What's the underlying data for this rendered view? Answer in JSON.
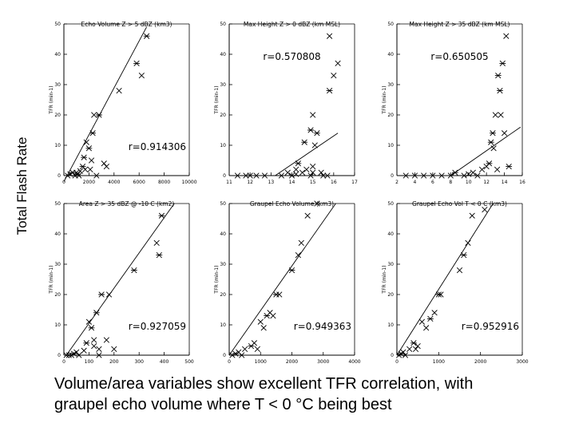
{
  "figure": {
    "ylabel": "Total Flash Rate",
    "caption_lines": [
      "Volume/area variables show excellent TFR correlation, with",
      "graupel echo volume where T < 0 °C being best"
    ]
  },
  "chart_data": [
    {
      "type": "scatter",
      "title": "Echo Volume Z > 5 dBZ (km3)",
      "ylabel": "TFR (min-1)",
      "annotation": "r=0.914306",
      "xlim": [
        0,
        10000
      ],
      "ylim": [
        0,
        50
      ],
      "xticks": [
        0,
        2000,
        4000,
        6000,
        8000,
        10000
      ],
      "yticks": [
        0,
        10,
        20,
        30,
        40,
        50
      ],
      "fit": [
        [
          0,
          -2
        ],
        [
          6600,
          49
        ]
      ],
      "points": [
        [
          300,
          0
        ],
        [
          500,
          0.5
        ],
        [
          700,
          1
        ],
        [
          900,
          0
        ],
        [
          1100,
          0.5
        ],
        [
          1300,
          1.5
        ],
        [
          1500,
          3
        ],
        [
          1700,
          2
        ],
        [
          1800,
          11
        ],
        [
          2000,
          9
        ],
        [
          2200,
          5
        ],
        [
          2300,
          14
        ],
        [
          2400,
          20
        ],
        [
          2800,
          20
        ],
        [
          3200,
          4
        ],
        [
          3400,
          3
        ],
        [
          4400,
          28
        ],
        [
          5800,
          37
        ],
        [
          6200,
          33
        ],
        [
          6600,
          46
        ],
        [
          1000,
          1
        ],
        [
          1600,
          6
        ],
        [
          2100,
          2
        ],
        [
          1200,
          0
        ],
        [
          2600,
          0
        ]
      ]
    },
    {
      "type": "scatter",
      "title": "Max Height Z > 0 dBZ (km MSL)",
      "ylabel": "TFR (min-1)",
      "annotation": "r=0.570808",
      "xlim": [
        11,
        17
      ],
      "ylim": [
        0,
        50
      ],
      "xticks": [
        11,
        12,
        13,
        14,
        15,
        16,
        17
      ],
      "yticks": [
        0,
        10,
        20,
        30,
        40,
        50
      ],
      "fit": [
        [
          13.2,
          0
        ],
        [
          16.2,
          14
        ]
      ],
      "points": [
        [
          11.4,
          0
        ],
        [
          11.8,
          0
        ],
        [
          12.0,
          0
        ],
        [
          12.3,
          0
        ],
        [
          12.7,
          0
        ],
        [
          13.5,
          0
        ],
        [
          13.8,
          1
        ],
        [
          14.0,
          0
        ],
        [
          14.2,
          0.5
        ],
        [
          14.3,
          4
        ],
        [
          14.5,
          1
        ],
        [
          14.6,
          11
        ],
        [
          14.7,
          2
        ],
        [
          14.9,
          0
        ],
        [
          14.9,
          15
        ],
        [
          15.0,
          3
        ],
        [
          15.0,
          20
        ],
        [
          15.1,
          10
        ],
        [
          15.2,
          14
        ],
        [
          15.4,
          1
        ],
        [
          15.5,
          0
        ],
        [
          15.7,
          0
        ],
        [
          15.8,
          28
        ],
        [
          16.2,
          37
        ],
        [
          16.0,
          33
        ],
        [
          15.8,
          46
        ],
        [
          14.2,
          2
        ],
        [
          15.0,
          1
        ]
      ]
    },
    {
      "type": "scatter",
      "title": "Max Height Z > 35 dBZ (km MSL)",
      "ylabel": "TFR (min-1)",
      "annotation": "r=0.650505",
      "xlim": [
        2,
        16
      ],
      "ylim": [
        0,
        50
      ],
      "xticks": [
        2,
        4,
        6,
        8,
        10,
        12,
        14,
        16
      ],
      "yticks": [
        0,
        10,
        20,
        30,
        40,
        50
      ],
      "fit": [
        [
          3,
          0
        ],
        [
          8,
          0
        ],
        [
          15.8,
          16
        ]
      ],
      "points": [
        [
          3,
          0
        ],
        [
          4,
          0
        ],
        [
          5,
          0
        ],
        [
          6,
          0
        ],
        [
          7,
          0
        ],
        [
          8,
          0
        ],
        [
          8.5,
          1
        ],
        [
          9.5,
          0
        ],
        [
          10,
          0.5
        ],
        [
          10.5,
          1
        ],
        [
          11,
          0
        ],
        [
          11.5,
          2
        ],
        [
          12,
          3
        ],
        [
          12.3,
          4
        ],
        [
          12.5,
          11
        ],
        [
          12.8,
          9
        ],
        [
          12.7,
          14
        ],
        [
          13,
          20
        ],
        [
          13.2,
          2
        ],
        [
          13.5,
          28
        ],
        [
          13.3,
          33
        ],
        [
          13.6,
          20
        ],
        [
          13.8,
          37
        ],
        [
          14,
          14
        ],
        [
          14.2,
          46
        ],
        [
          14.5,
          3
        ]
      ]
    },
    {
      "type": "scatter",
      "title": "Area Z > 35 dBZ @ -10 C (km2)",
      "ylabel": "TFR (min-1)",
      "annotation": "r=0.927059",
      "xlim": [
        0,
        500
      ],
      "ylim": [
        0,
        50
      ],
      "xticks": [
        0,
        100,
        200,
        300,
        400,
        500
      ],
      "yticks": [
        0,
        10,
        20,
        30,
        40,
        50
      ],
      "fit": [
        [
          10,
          0
        ],
        [
          440,
          50
        ]
      ],
      "points": [
        [
          10,
          0
        ],
        [
          20,
          0
        ],
        [
          30,
          0
        ],
        [
          40,
          0.5
        ],
        [
          50,
          1
        ],
        [
          60,
          0
        ],
        [
          80,
          1.5
        ],
        [
          90,
          4
        ],
        [
          100,
          11
        ],
        [
          110,
          9
        ],
        [
          120,
          3
        ],
        [
          130,
          14
        ],
        [
          140,
          2
        ],
        [
          150,
          20
        ],
        [
          170,
          5
        ],
        [
          180,
          20
        ],
        [
          200,
          2
        ],
        [
          280,
          28
        ],
        [
          370,
          37
        ],
        [
          380,
          33
        ],
        [
          390,
          46
        ],
        [
          120,
          5
        ],
        [
          140,
          0
        ]
      ]
    },
    {
      "type": "scatter",
      "title": "Graupel Echo Volume (km3)",
      "ylabel": "TFR (min-1)",
      "annotation": "r=0.949363",
      "xlim": [
        0,
        4000
      ],
      "ylim": [
        0,
        50
      ],
      "xticks": [
        0,
        1000,
        2000,
        3000,
        4000
      ],
      "yticks": [
        0,
        10,
        20,
        30,
        40,
        50
      ],
      "fit": [
        [
          0,
          0
        ],
        [
          3400,
          50
        ]
      ],
      "points": [
        [
          100,
          0
        ],
        [
          200,
          0.5
        ],
        [
          300,
          1
        ],
        [
          400,
          0
        ],
        [
          500,
          2
        ],
        [
          700,
          3
        ],
        [
          800,
          4
        ],
        [
          900,
          2
        ],
        [
          1000,
          11
        ],
        [
          1100,
          9
        ],
        [
          1200,
          13
        ],
        [
          1300,
          14
        ],
        [
          1400,
          13
        ],
        [
          1500,
          20
        ],
        [
          1600,
          20
        ],
        [
          2000,
          28
        ],
        [
          2200,
          33
        ],
        [
          2300,
          37
        ],
        [
          2500,
          46
        ],
        [
          2800,
          50
        ]
      ]
    },
    {
      "type": "scatter",
      "title": "Graupel Echo Vol T < 0 C (km3)",
      "ylabel": "TFR (min-1)",
      "annotation": "r=0.952916",
      "xlim": [
        0,
        3000
      ],
      "ylim": [
        0,
        50
      ],
      "xticks": [
        0,
        1000,
        2000,
        3000
      ],
      "yticks": [
        0,
        10,
        20,
        30,
        40,
        50
      ],
      "fit": [
        [
          0,
          0
        ],
        [
          2300,
          50
        ]
      ],
      "points": [
        [
          50,
          0
        ],
        [
          100,
          0.5
        ],
        [
          150,
          1
        ],
        [
          200,
          0
        ],
        [
          300,
          2
        ],
        [
          400,
          4
        ],
        [
          450,
          2
        ],
        [
          500,
          3
        ],
        [
          600,
          11
        ],
        [
          700,
          9
        ],
        [
          800,
          12
        ],
        [
          900,
          14
        ],
        [
          1000,
          20
        ],
        [
          1050,
          20
        ],
        [
          1500,
          28
        ],
        [
          1600,
          33
        ],
        [
          1700,
          37
        ],
        [
          1800,
          46
        ],
        [
          2100,
          48
        ]
      ]
    }
  ]
}
